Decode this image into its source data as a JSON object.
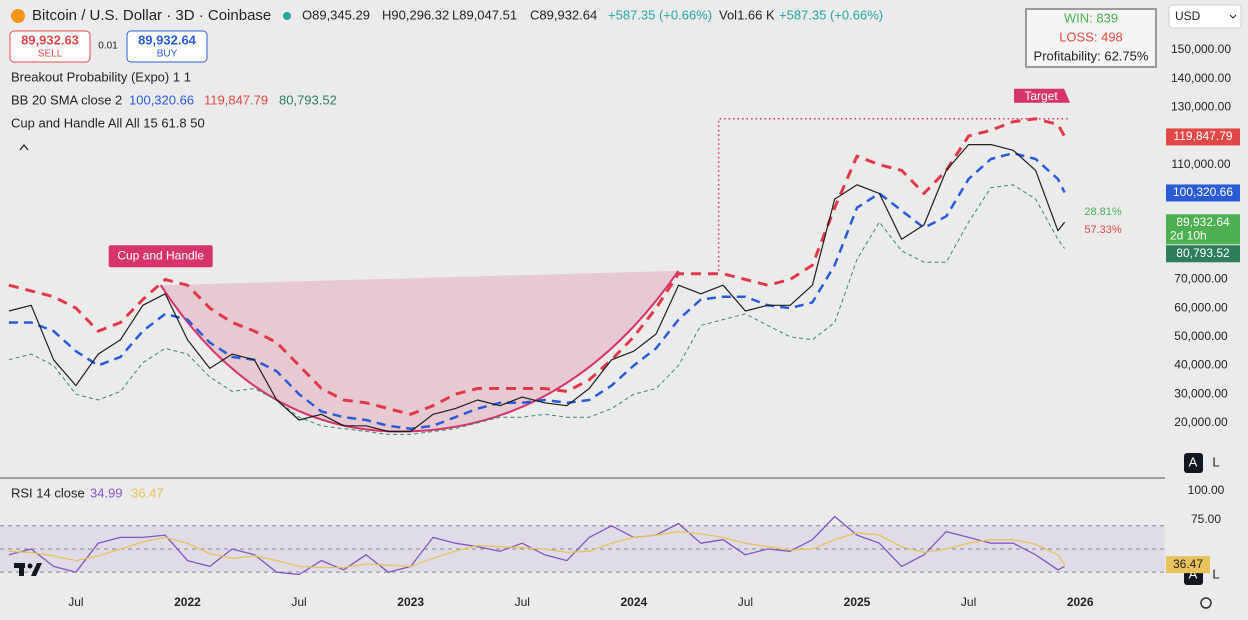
{
  "header": {
    "title": "Bitcoin / U.S. Dollar · 3D · Coinbase",
    "ohlc": [
      "O89,345.29",
      "H90,296.32",
      "L89,047.51",
      "C89,932.64",
      "+587.35 (+0.66%)",
      "Vol1.66 K",
      "+587.35 (+0.66%)"
    ],
    "sell": {
      "price": "89,932.63",
      "label": "SELL"
    },
    "spread": "0.01",
    "buy": {
      "price": "89,932.64",
      "label": "BUY"
    },
    "breakout": "Breakout Probability (Expo) 1 1",
    "bb": "BB 20 SMA close 2",
    "cup_indicator": "Cup and Handle All All 15 61.8 50",
    "stats": {
      "win": "WIN: 839",
      "loss": "LOSS: 498",
      "profitability": "Profitability: 62.75%"
    },
    "currency": "USD",
    "scale_buttons": [
      "A",
      "L"
    ]
  },
  "chart_data": [
    {
      "type": "line",
      "xlim": [
        2021.16,
        2026.38
      ],
      "ylim": [
        800,
        167400
      ],
      "xticks": [
        {
          "value": 2021.5,
          "label": "Jul"
        },
        {
          "value": 2022,
          "label": "2022"
        },
        {
          "value": 2022.5,
          "label": "Jul"
        },
        {
          "value": 2023,
          "label": "2023"
        },
        {
          "value": 2023.5,
          "label": "Jul"
        },
        {
          "value": 2024,
          "label": "2024"
        },
        {
          "value": 2024.5,
          "label": "Jul"
        },
        {
          "value": 2025,
          "label": "2025"
        },
        {
          "value": 2025.5,
          "label": "Jul"
        },
        {
          "value": 2026,
          "label": "2026"
        }
      ],
      "yticks": [
        {
          "value": 20000,
          "label": "20,000.00"
        },
        {
          "value": 30000,
          "label": "30,000.00"
        },
        {
          "value": 40000,
          "label": "40,000.00"
        },
        {
          "value": 50000,
          "label": "50,000.00"
        },
        {
          "value": 60000,
          "label": "60,000.00"
        },
        {
          "value": 70000,
          "label": "70,000.00"
        },
        {
          "value": 110000,
          "label": "110,000.00"
        },
        {
          "value": 130000,
          "label": "130,000.00"
        },
        {
          "value": 140000,
          "label": "140,000.00"
        },
        {
          "value": 150000,
          "label": "150,000.00"
        }
      ],
      "x": [
        2021.2,
        2021.3,
        2021.4,
        2021.5,
        2021.6,
        2021.7,
        2021.8,
        2021.9,
        2022.0,
        2022.1,
        2022.2,
        2022.3,
        2022.4,
        2022.5,
        2022.6,
        2022.7,
        2022.8,
        2022.9,
        2023.0,
        2023.1,
        2023.2,
        2023.3,
        2023.4,
        2023.5,
        2023.6,
        2023.7,
        2023.8,
        2023.9,
        2024.0,
        2024.1,
        2024.2,
        2024.3,
        2024.4,
        2024.5,
        2024.6,
        2024.7,
        2024.8,
        2024.9,
        2025.0,
        2025.1,
        2025.2,
        2025.3,
        2025.4,
        2025.5,
        2025.6,
        2025.7,
        2025.8,
        2025.9,
        2025.93
      ],
      "series": [
        {
          "color": "#e03a4a",
          "style": "dashed-thick",
          "values": [
            68000,
            66000,
            64000,
            60000,
            52000,
            55000,
            63000,
            70000,
            68000,
            60000,
            55000,
            52000,
            48000,
            40000,
            32000,
            28000,
            27000,
            25000,
            23000,
            26000,
            30000,
            32000,
            32000,
            32000,
            32000,
            31000,
            35000,
            42000,
            50000,
            60000,
            72000,
            72000,
            72000,
            70000,
            68000,
            70000,
            75000,
            95000,
            113000,
            110000,
            108000,
            100000,
            108000,
            120000,
            122000,
            125000,
            126000,
            124000,
            119847.79
          ]
        },
        {
          "color": "#2a5bd7",
          "style": "dashed",
          "values": [
            55000,
            55000,
            52000,
            45000,
            40000,
            43000,
            52000,
            58000,
            56000,
            48000,
            43000,
            42000,
            38000,
            30000,
            24000,
            22000,
            21000,
            19000,
            18000,
            19000,
            22000,
            25000,
            27000,
            27000,
            28000,
            27000,
            28000,
            33000,
            40000,
            46000,
            56000,
            63000,
            64000,
            64000,
            61000,
            60000,
            62000,
            75000,
            95000,
            100000,
            94000,
            88000,
            92000,
            105000,
            112000,
            114000,
            112000,
            105000,
            100320.66
          ]
        },
        {
          "color": "#3a8a6a",
          "style": "dashed-thin",
          "values": [
            42000,
            44000,
            40000,
            30000,
            28000,
            31000,
            41000,
            46000,
            44000,
            36000,
            31000,
            32000,
            28000,
            22000,
            19000,
            18000,
            17000,
            16000,
            16000,
            17000,
            18000,
            20000,
            22000,
            22000,
            23000,
            22000,
            22000,
            25000,
            30000,
            32000,
            40000,
            54000,
            56000,
            58000,
            54000,
            50000,
            49000,
            55000,
            77000,
            90000,
            80000,
            76000,
            76000,
            90000,
            102000,
            103000,
            98000,
            84000,
            80793.52
          ]
        },
        {
          "color": "#1e1e1e",
          "style": "solid",
          "values": [
            59000,
            61000,
            42000,
            33000,
            44000,
            49000,
            61000,
            65000,
            49000,
            39000,
            44000,
            42000,
            28000,
            21000,
            23000,
            19000,
            19000,
            17000,
            17000,
            23000,
            25000,
            28000,
            26000,
            29000,
            27000,
            26000,
            32000,
            42000,
            45000,
            51000,
            68000,
            65000,
            68000,
            59000,
            61000,
            61000,
            68000,
            98000,
            103000,
            100000,
            84000,
            89000,
            108000,
            117000,
            117000,
            115000,
            108000,
            87000,
            89932.64
          ]
        }
      ],
      "price_labels": [
        {
          "value": 119847.79,
          "label": "119,847.79",
          "color": "#e04848"
        },
        {
          "value": 100320.66,
          "label": "100,320.66",
          "color": "#2a5bd7"
        },
        {
          "value": 89932.64,
          "label": "89,932.64",
          "countdown": "2d 10h",
          "color": "#4caf50"
        },
        {
          "value": 80793.52,
          "label": "80,793.52",
          "color": "#2e7d5b"
        }
      ],
      "cup_and_handle": {
        "label": "Cup and Handle",
        "x": [
          2021.88,
          2022.95,
          2024.2
        ],
        "values": [
          68000,
          17000,
          73000
        ]
      },
      "target": {
        "label": "Target",
        "x": [
          2024.38,
          2025.95
        ],
        "value": 126000
      },
      "percent_labels": [
        {
          "label": "28.81%",
          "color": "#4caf50"
        },
        {
          "label": "57.33%",
          "color": "#e04848"
        }
      ]
    },
    {
      "type": "line",
      "title": "RSI 14 close",
      "ylim": [
        10.3,
        109.5
      ],
      "yticks": [
        {
          "value": 100,
          "label": "100.00"
        },
        {
          "value": 75,
          "label": "75.00"
        }
      ],
      "levels": [
        70,
        50,
        30
      ],
      "x": [
        2021.2,
        2021.3,
        2021.4,
        2021.5,
        2021.6,
        2021.7,
        2021.8,
        2021.9,
        2022.0,
        2022.1,
        2022.2,
        2022.3,
        2022.4,
        2022.5,
        2022.6,
        2022.7,
        2022.8,
        2022.9,
        2023.0,
        2023.1,
        2023.2,
        2023.3,
        2023.4,
        2023.5,
        2023.6,
        2023.7,
        2023.8,
        2023.9,
        2024.0,
        2024.1,
        2024.2,
        2024.3,
        2024.4,
        2024.5,
        2024.6,
        2024.7,
        2024.8,
        2024.9,
        2025.0,
        2025.1,
        2025.2,
        2025.3,
        2025.4,
        2025.5,
        2025.6,
        2025.7,
        2025.8,
        2025.9,
        2025.93
      ],
      "series": [
        {
          "color": "#7e57c2",
          "values": [
            45,
            50,
            35,
            30,
            55,
            60,
            60,
            62,
            40,
            35,
            50,
            45,
            30,
            28,
            40,
            32,
            45,
            30,
            35,
            60,
            55,
            52,
            48,
            55,
            45,
            40,
            60,
            70,
            60,
            62,
            72,
            55,
            58,
            45,
            50,
            48,
            58,
            78,
            62,
            55,
            35,
            45,
            65,
            60,
            55,
            55,
            45,
            32,
            34.99
          ]
        },
        {
          "color": "#e8c25a",
          "values": [
            48,
            47,
            44,
            40,
            44,
            50,
            56,
            60,
            55,
            46,
            42,
            44,
            40,
            35,
            34,
            34,
            37,
            36,
            35,
            42,
            48,
            53,
            52,
            51,
            50,
            47,
            48,
            55,
            60,
            62,
            65,
            63,
            60,
            55,
            52,
            49,
            50,
            58,
            64,
            62,
            52,
            47,
            50,
            55,
            58,
            58,
            54,
            45,
            36.47
          ]
        }
      ]
    }
  ]
}
